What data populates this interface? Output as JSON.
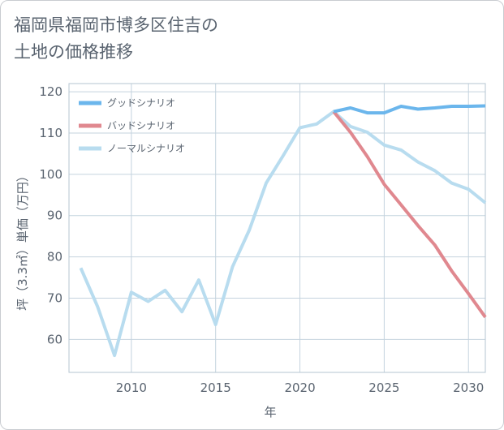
{
  "title_lines": [
    "福岡県福岡市博多区住吉の",
    "土地の価格推移"
  ],
  "chart_data": {
    "type": "line",
    "title": "福岡県福岡市博多区住吉の土地の価格推移",
    "xlabel": "年",
    "ylabel": "坪（3.3㎡）単価（万円）",
    "xlim": [
      2006.3,
      2031
    ],
    "ylim": [
      52,
      122
    ],
    "xticks": [
      2010,
      2015,
      2020,
      2025,
      2030
    ],
    "yticks": [
      60,
      70,
      80,
      90,
      100,
      110,
      120
    ],
    "grid": true,
    "legend_position": "top-left",
    "series": [
      {
        "name": "グッドシナリオ",
        "color": "#6bb6ec",
        "x": [
          2022,
          2023,
          2024,
          2025,
          2026,
          2027,
          2028,
          2029,
          2030,
          2031
        ],
        "y": [
          115.2,
          116.1,
          114.9,
          114.9,
          116.5,
          115.8,
          116.1,
          116.5,
          116.5,
          116.6
        ]
      },
      {
        "name": "バッドシナリオ",
        "color": "#e0888f",
        "x": [
          2022,
          2023,
          2024,
          2025,
          2026,
          2027,
          2028,
          2029,
          2030,
          2031
        ],
        "y": [
          115.2,
          110.2,
          104.3,
          97.6,
          92.6,
          87.6,
          82.9,
          76.6,
          71.1,
          65.4
        ]
      },
      {
        "name": "ノーマルシナリオ",
        "color": "#b8dcef",
        "x": [
          2007,
          2008,
          2009,
          2010,
          2011,
          2012,
          2013,
          2014,
          2015,
          2016,
          2017,
          2018,
          2019,
          2020,
          2021,
          2022,
          2023,
          2024,
          2025,
          2026,
          2027,
          2028,
          2029,
          2030,
          2031
        ],
        "y": [
          77.3,
          67.9,
          56.1,
          71.4,
          69.2,
          71.9,
          66.7,
          74.4,
          63.6,
          77.6,
          86.5,
          97.9,
          104.5,
          111.3,
          112.2,
          115.2,
          111.6,
          110.2,
          107.1,
          105.9,
          103,
          100.9,
          97.9,
          96.4,
          93.1
        ]
      }
    ]
  }
}
